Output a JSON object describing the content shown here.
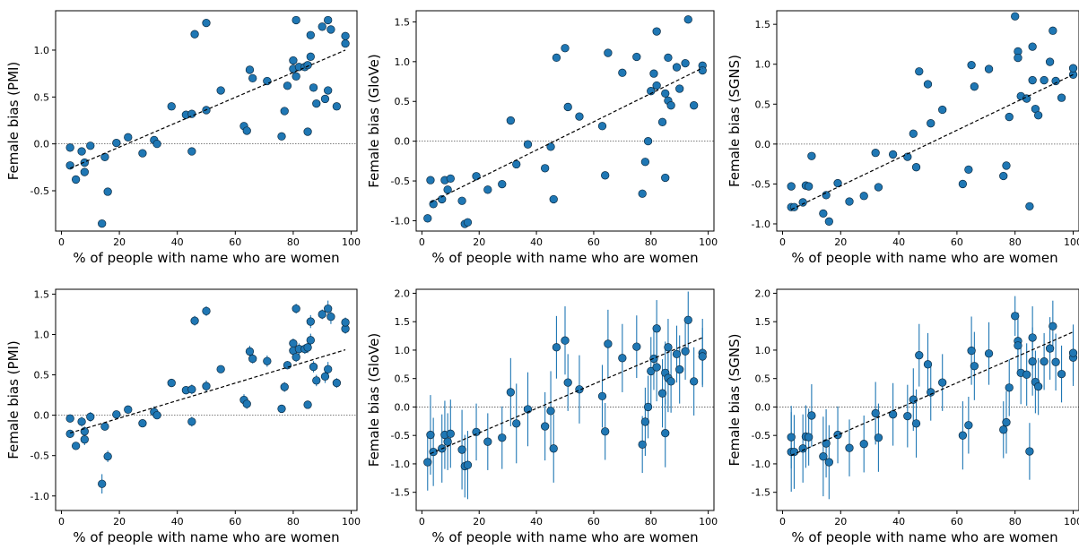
{
  "chart_data": [
    {
      "type": "scatter",
      "xlabel": "% of people with name who are women",
      "ylabel": "Female bias (PMI)",
      "xlim": [
        -2,
        102
      ],
      "ylim": [
        -0.93,
        1.42
      ],
      "xticks": [
        0,
        20,
        40,
        60,
        80,
        100
      ],
      "xtick_labels": [
        "0",
        "20",
        "40",
        "60",
        "80",
        "100"
      ],
      "yticks": [
        -0.5,
        0.0,
        0.5,
        1.0
      ],
      "ytick_labels": [
        "-0.5",
        "0.0",
        "0.5",
        "1.0"
      ],
      "reference_line_y": 0,
      "trend_line": {
        "x": [
          3,
          98
        ],
        "y": [
          -0.26,
          1.0
        ]
      },
      "error_bars": false,
      "x": [
        3,
        3,
        5,
        7,
        8,
        8,
        10,
        14,
        15,
        16,
        19,
        23,
        28,
        32,
        33,
        38,
        43,
        45,
        45,
        46,
        50,
        50,
        55,
        63,
        64,
        65,
        66,
        71,
        76,
        77,
        78,
        80,
        80,
        81,
        81,
        82,
        84,
        85,
        85,
        86,
        86,
        87,
        88,
        90,
        91,
        92,
        92,
        93,
        95,
        98,
        98
      ],
      "y": [
        -0.23,
        -0.04,
        -0.38,
        -0.08,
        -0.2,
        -0.3,
        -0.02,
        -0.85,
        -0.14,
        -0.51,
        0.01,
        0.07,
        -0.1,
        0.04,
        0.0,
        0.4,
        0.31,
        0.32,
        -0.08,
        1.17,
        1.29,
        0.36,
        0.57,
        0.19,
        0.14,
        0.79,
        0.7,
        0.67,
        0.08,
        0.35,
        0.62,
        0.89,
        0.8,
        1.32,
        0.72,
        0.82,
        0.82,
        0.13,
        0.84,
        0.93,
        1.16,
        0.6,
        0.43,
        1.25,
        0.48,
        0.57,
        1.32,
        1.22,
        0.4,
        1.07,
        1.15
      ],
      "err": []
    },
    {
      "type": "scatter",
      "xlabel": "% of people with name who are women",
      "ylabel": "Female bias (GloVe)",
      "xlim": [
        -2,
        102
      ],
      "ylim": [
        -1.13,
        1.64
      ],
      "xticks": [
        0,
        20,
        40,
        60,
        80,
        100
      ],
      "xtick_labels": [
        "0",
        "20",
        "40",
        "60",
        "80",
        "100"
      ],
      "yticks": [
        -1.0,
        -0.5,
        0.0,
        0.5,
        1.0,
        1.5
      ],
      "ytick_labels": [
        "-1.0",
        "-0.5",
        "0.0",
        "0.5",
        "1.0",
        "1.5"
      ],
      "reference_line_y": 0,
      "trend_line": {
        "x": [
          3,
          98
        ],
        "y": [
          -0.77,
          0.92
        ]
      },
      "error_bars": false,
      "x": [
        2,
        3,
        4,
        7,
        8,
        9,
        10,
        14,
        15,
        16,
        19,
        23,
        28,
        31,
        33,
        37,
        43,
        45,
        46,
        47,
        50,
        51,
        55,
        63,
        64,
        65,
        70,
        75,
        77,
        78,
        79,
        80,
        81,
        82,
        82,
        84,
        85,
        85,
        86,
        86,
        87,
        89,
        90,
        92,
        93,
        95,
        98,
        98
      ],
      "y": [
        -0.97,
        -0.49,
        -0.79,
        -0.73,
        -0.49,
        -0.61,
        -0.47,
        -0.75,
        -1.04,
        -1.02,
        -0.44,
        -0.61,
        -0.54,
        0.26,
        -0.29,
        -0.04,
        -0.34,
        -0.07,
        -0.73,
        1.05,
        1.17,
        0.43,
        0.31,
        0.19,
        -0.43,
        1.11,
        0.86,
        1.06,
        -0.66,
        -0.26,
        0.0,
        0.63,
        0.85,
        1.38,
        0.7,
        0.24,
        0.6,
        -0.46,
        0.51,
        1.05,
        0.45,
        0.93,
        0.66,
        0.98,
        1.53,
        0.45,
        0.95,
        0.89
      ],
      "err": []
    },
    {
      "type": "scatter",
      "xlabel": "% of people with name who are women",
      "ylabel": "Female bias (SGNS)",
      "xlim": [
        -2,
        102
      ],
      "ylim": [
        -1.09,
        1.67
      ],
      "xticks": [
        0,
        20,
        40,
        60,
        80,
        100
      ],
      "xtick_labels": [
        "0",
        "20",
        "40",
        "60",
        "80",
        "100"
      ],
      "yticks": [
        -1.0,
        -0.5,
        0.0,
        0.5,
        1.0,
        1.5
      ],
      "ytick_labels": [
        "-1.0",
        "-0.5",
        "0.0",
        "0.5",
        "1.0",
        "1.5"
      ],
      "reference_line_y": 0,
      "trend_line": {
        "x": [
          3,
          100
        ],
        "y": [
          -0.82,
          0.87
        ]
      },
      "error_bars": false,
      "x": [
        3,
        3,
        4,
        7,
        8,
        9,
        10,
        14,
        15,
        16,
        19,
        23,
        28,
        32,
        33,
        38,
        43,
        45,
        46,
        47,
        50,
        51,
        55,
        62,
        64,
        65,
        66,
        71,
        76,
        77,
        78,
        80,
        81,
        81,
        82,
        84,
        85,
        86,
        86,
        87,
        88,
        90,
        92,
        93,
        94,
        96,
        100,
        100
      ],
      "y": [
        -0.79,
        -0.53,
        -0.79,
        -0.73,
        -0.52,
        -0.53,
        -0.15,
        -0.87,
        -0.64,
        -0.97,
        -0.49,
        -0.72,
        -0.65,
        -0.11,
        -0.54,
        -0.13,
        -0.16,
        0.13,
        -0.29,
        0.91,
        0.75,
        0.26,
        0.43,
        -0.5,
        -0.32,
        0.99,
        0.72,
        0.94,
        -0.4,
        -0.27,
        0.34,
        1.6,
        1.16,
        1.08,
        0.6,
        0.57,
        -0.78,
        1.22,
        0.8,
        0.44,
        0.36,
        0.8,
        1.03,
        1.42,
        0.79,
        0.58,
        0.87,
        0.95
      ],
      "err": []
    },
    {
      "type": "scatter",
      "xlabel": "% of people with name who are women",
      "ylabel": "Female bias (PMI)",
      "xlim": [
        -2,
        102
      ],
      "ylim": [
        -1.18,
        1.56
      ],
      "xticks": [
        0,
        20,
        40,
        60,
        80,
        100
      ],
      "xtick_labels": [
        "0",
        "20",
        "40",
        "60",
        "80",
        "100"
      ],
      "yticks": [
        -1.0,
        -0.5,
        0.0,
        0.5,
        1.0,
        1.5
      ],
      "ytick_labels": [
        "-1.0",
        "-0.5",
        "0.0",
        "0.5",
        "1.0",
        "1.5"
      ],
      "reference_line_y": 0,
      "trend_line": {
        "x": [
          3,
          98
        ],
        "y": [
          -0.22,
          0.81
        ]
      },
      "error_bars": true,
      "x": [
        3,
        3,
        5,
        7,
        8,
        8,
        10,
        14,
        15,
        16,
        19,
        23,
        28,
        32,
        33,
        38,
        43,
        45,
        45,
        46,
        50,
        50,
        55,
        63,
        64,
        65,
        66,
        71,
        76,
        77,
        78,
        80,
        80,
        81,
        81,
        82,
        84,
        85,
        85,
        86,
        86,
        87,
        88,
        90,
        91,
        92,
        92,
        93,
        95,
        98,
        98
      ],
      "y": [
        -0.23,
        -0.04,
        -0.38,
        -0.08,
        -0.2,
        -0.3,
        -0.02,
        -0.85,
        -0.14,
        -0.51,
        0.01,
        0.07,
        -0.1,
        0.04,
        0.0,
        0.4,
        0.31,
        0.32,
        -0.08,
        1.17,
        1.29,
        0.36,
        0.57,
        0.19,
        0.14,
        0.79,
        0.7,
        0.67,
        0.08,
        0.35,
        0.62,
        0.89,
        0.8,
        1.32,
        0.72,
        0.82,
        0.82,
        0.13,
        0.84,
        0.93,
        1.16,
        0.6,
        0.43,
        1.25,
        0.48,
        0.57,
        1.32,
        1.22,
        0.4,
        1.07,
        1.15
      ],
      "err": [
        0.03,
        0.04,
        0.04,
        0.06,
        0.06,
        0.07,
        0.06,
        0.12,
        0.05,
        0.07,
        0.03,
        0.04,
        0.04,
        0.07,
        0.04,
        0.05,
        0.04,
        0.06,
        0.06,
        0.06,
        0.06,
        0.07,
        0.04,
        0.07,
        0.06,
        0.07,
        0.06,
        0.07,
        0.04,
        0.06,
        0.05,
        0.06,
        0.05,
        0.06,
        0.06,
        0.07,
        0.06,
        0.05,
        0.07,
        0.08,
        0.08,
        0.07,
        0.07,
        0.06,
        0.08,
        0.09,
        0.1,
        0.09,
        0.06,
        0.06,
        0.06
      ]
    },
    {
      "type": "scatter",
      "xlabel": "% of people with name who are women",
      "ylabel": "Female bias (GloVe)",
      "xlim": [
        -2,
        102
      ],
      "ylim": [
        -1.82,
        2.07
      ],
      "xticks": [
        0,
        20,
        40,
        60,
        80,
        100
      ],
      "xtick_labels": [
        "0",
        "20",
        "40",
        "60",
        "80",
        "100"
      ],
      "yticks": [
        -1.5,
        -1.0,
        -0.5,
        0.0,
        0.5,
        1.0,
        1.5,
        2.0
      ],
      "ytick_labels": [
        "-1.5",
        "-1.0",
        "-0.5",
        "0.0",
        "0.5",
        "1.0",
        "1.5",
        "2.0"
      ],
      "reference_line_y": 0,
      "trend_line": {
        "x": [
          3,
          98
        ],
        "y": [
          -0.82,
          1.22
        ]
      },
      "error_bars": true,
      "x": [
        2,
        3,
        4,
        7,
        8,
        9,
        10,
        14,
        15,
        16,
        19,
        23,
        28,
        31,
        33,
        37,
        43,
        45,
        46,
        47,
        50,
        51,
        55,
        63,
        64,
        65,
        70,
        75,
        77,
        78,
        79,
        80,
        81,
        82,
        82,
        84,
        85,
        85,
        86,
        86,
        87,
        89,
        90,
        92,
        93,
        95,
        98,
        98
      ],
      "y": [
        -0.97,
        -0.49,
        -0.79,
        -0.73,
        -0.49,
        -0.61,
        -0.47,
        -0.75,
        -1.04,
        -1.02,
        -0.44,
        -0.61,
        -0.54,
        0.26,
        -0.29,
        -0.04,
        -0.34,
        -0.07,
        -0.73,
        1.05,
        1.17,
        0.43,
        0.31,
        0.19,
        -0.43,
        1.11,
        0.86,
        1.06,
        -0.66,
        -0.26,
        0.0,
        0.63,
        0.85,
        1.38,
        0.7,
        0.24,
        0.6,
        -0.46,
        0.51,
        1.05,
        0.45,
        0.93,
        0.66,
        0.98,
        1.53,
        0.45,
        0.95,
        0.89
      ],
      "err": [
        0.5,
        0.7,
        0.6,
        0.6,
        0.6,
        0.5,
        0.6,
        0.7,
        0.55,
        0.6,
        0.5,
        0.5,
        0.55,
        0.6,
        0.7,
        0.65,
        0.6,
        0.7,
        0.6,
        0.55,
        0.6,
        0.5,
        0.6,
        0.55,
        0.5,
        0.6,
        0.6,
        0.55,
        0.5,
        0.6,
        0.55,
        0.6,
        0.55,
        0.5,
        0.6,
        0.6,
        0.55,
        0.6,
        0.6,
        0.5,
        0.55,
        0.5,
        0.6,
        0.5,
        0.5,
        0.6,
        0.6,
        0.5
      ]
    },
    {
      "type": "scatter",
      "xlabel": "% of people with name who are women",
      "ylabel": "Female bias (SGNS)",
      "xlim": [
        -2,
        102
      ],
      "ylim": [
        -1.82,
        2.07
      ],
      "xticks": [
        0,
        20,
        40,
        60,
        80,
        100
      ],
      "xtick_labels": [
        "0",
        "20",
        "40",
        "60",
        "80",
        "100"
      ],
      "yticks": [
        -1.5,
        -1.0,
        -0.5,
        0.0,
        0.5,
        1.0,
        1.5,
        2.0
      ],
      "ytick_labels": [
        "-1.5",
        "-1.0",
        "-0.5",
        "0.0",
        "0.5",
        "1.0",
        "1.5",
        "2.0"
      ],
      "reference_line_y": 0,
      "trend_line": {
        "x": [
          3,
          100
        ],
        "y": [
          -0.85,
          1.32
        ]
      },
      "error_bars": true,
      "x": [
        3,
        3,
        4,
        7,
        8,
        9,
        10,
        14,
        15,
        16,
        19,
        23,
        28,
        32,
        33,
        38,
        43,
        45,
        46,
        47,
        50,
        51,
        55,
        62,
        64,
        65,
        66,
        71,
        76,
        77,
        78,
        80,
        81,
        81,
        82,
        84,
        85,
        86,
        86,
        87,
        88,
        90,
        92,
        93,
        94,
        96,
        100,
        100
      ],
      "y": [
        -0.79,
        -0.53,
        -0.79,
        -0.73,
        -0.52,
        -0.53,
        -0.15,
        -0.87,
        -0.64,
        -0.97,
        -0.49,
        -0.72,
        -0.65,
        -0.11,
        -0.54,
        -0.13,
        -0.16,
        0.13,
        -0.29,
        0.91,
        0.75,
        0.26,
        0.43,
        -0.5,
        -0.32,
        0.99,
        0.72,
        0.94,
        -0.4,
        -0.27,
        0.34,
        1.6,
        1.16,
        1.08,
        0.6,
        0.57,
        -0.78,
        1.22,
        0.8,
        0.44,
        0.36,
        0.8,
        1.03,
        1.42,
        0.79,
        0.58,
        0.87,
        0.95
      ],
      "err": [
        0.7,
        0.55,
        0.65,
        0.6,
        0.55,
        0.5,
        0.55,
        0.7,
        0.6,
        0.65,
        0.5,
        0.5,
        0.5,
        0.55,
        0.6,
        0.55,
        0.55,
        0.55,
        0.6,
        0.55,
        0.55,
        0.5,
        0.5,
        0.6,
        0.5,
        0.6,
        0.6,
        0.55,
        0.5,
        0.55,
        0.5,
        0.35,
        0.5,
        0.45,
        0.55,
        0.55,
        0.5,
        0.55,
        0.6,
        0.55,
        0.5,
        0.5,
        0.55,
        0.45,
        0.5,
        0.5,
        0.5,
        0.5
      ]
    }
  ]
}
